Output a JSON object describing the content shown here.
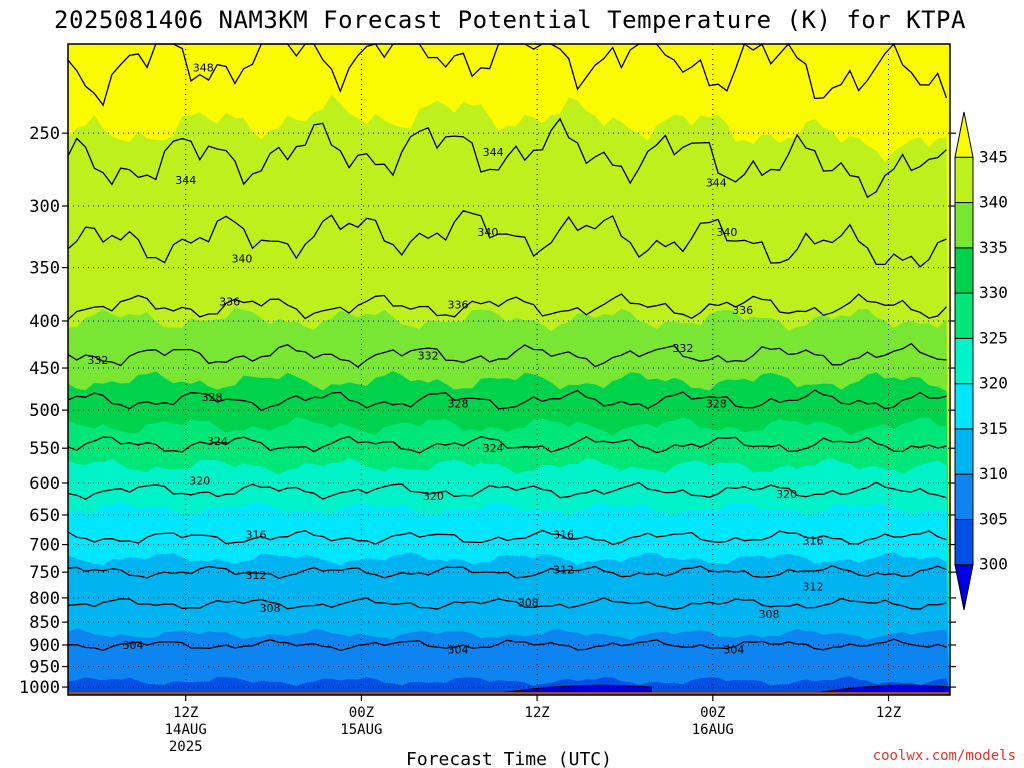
{
  "chart_data": {
    "type": "contour",
    "title": "2025081406 NAM3KM Forecast Potential Temperature (K) for KTPA",
    "xlabel": "Forecast Time (UTC)",
    "ylabel": "",
    "y_scale": "log-pressure",
    "y_reverse": true,
    "ylim": [
      1020,
      200
    ],
    "xlim": [
      -6.7,
      43.5
    ],
    "x_units": "hours from 2025081412",
    "y_ticks": [
      250,
      300,
      350,
      400,
      450,
      500,
      550,
      600,
      650,
      700,
      750,
      800,
      850,
      900,
      950,
      1000
    ],
    "y_tick_labels": [
      "250",
      "300",
      "350",
      "400",
      "450",
      "500",
      "550",
      "600",
      "650",
      "700",
      "750",
      "800",
      "850",
      "900",
      "950",
      "1000"
    ],
    "x_ticks": [
      {
        "x": 0,
        "lines": [
          "12Z",
          "14AUG",
          "2025"
        ]
      },
      {
        "x": 10,
        "lines": [
          "00Z",
          "15AUG"
        ]
      },
      {
        "x": 20,
        "lines": [
          "12Z"
        ]
      },
      {
        "x": 30,
        "lines": [
          "00Z",
          "16AUG"
        ]
      },
      {
        "x": 40,
        "lines": [
          "12Z"
        ]
      }
    ],
    "grid": true,
    "colorbar": {
      "levels": [
        300,
        305,
        310,
        315,
        320,
        325,
        330,
        335,
        340,
        345
      ],
      "labels": [
        "300",
        "305",
        "310",
        "315",
        "320",
        "325",
        "330",
        "335",
        "340",
        "345"
      ],
      "colors": [
        "#0000e6",
        "#0050e6",
        "#0d84f0",
        "#00b4f2",
        "#00e6ff",
        "#00f2c8",
        "#00e678",
        "#00d24b",
        "#78e632",
        "#bef01e",
        "#fafa00"
      ]
    },
    "contour_levels": [
      304,
      308,
      312,
      316,
      320,
      324,
      328,
      332,
      336,
      340,
      344,
      348
    ],
    "contour_labels": [
      {
        "value": 348,
        "x": 1.0,
        "p": 212
      },
      {
        "value": 344,
        "x": 0.0,
        "p": 281
      },
      {
        "value": 344,
        "x": 17.5,
        "p": 262
      },
      {
        "value": 344,
        "x": 30.2,
        "p": 283
      },
      {
        "value": 340,
        "x": 3.2,
        "p": 342
      },
      {
        "value": 340,
        "x": 17.2,
        "p": 320
      },
      {
        "value": 340,
        "x": 30.8,
        "p": 320
      },
      {
        "value": 336,
        "x": 2.5,
        "p": 381
      },
      {
        "value": 336,
        "x": 15.5,
        "p": 384
      },
      {
        "value": 336,
        "x": 31.7,
        "p": 389
      },
      {
        "value": 332,
        "x": -5.0,
        "p": 441
      },
      {
        "value": 332,
        "x": 13.8,
        "p": 436
      },
      {
        "value": 332,
        "x": 28.3,
        "p": 428
      },
      {
        "value": 328,
        "x": 1.5,
        "p": 484
      },
      {
        "value": 328,
        "x": 15.5,
        "p": 492
      },
      {
        "value": 328,
        "x": 30.2,
        "p": 492
      },
      {
        "value": 324,
        "x": 1.8,
        "p": 540
      },
      {
        "value": 324,
        "x": 17.5,
        "p": 550
      },
      {
        "value": 320,
        "x": 0.8,
        "p": 596
      },
      {
        "value": 320,
        "x": 14.1,
        "p": 620
      },
      {
        "value": 320,
        "x": 34.2,
        "p": 617
      },
      {
        "value": 316,
        "x": 4.0,
        "p": 683
      },
      {
        "value": 316,
        "x": 21.5,
        "p": 683
      },
      {
        "value": 316,
        "x": 35.7,
        "p": 693
      },
      {
        "value": 312,
        "x": 4.0,
        "p": 755
      },
      {
        "value": 312,
        "x": 21.5,
        "p": 745
      },
      {
        "value": 312,
        "x": 35.7,
        "p": 777
      },
      {
        "value": 308,
        "x": 4.8,
        "p": 820
      },
      {
        "value": 308,
        "x": 19.5,
        "p": 809
      },
      {
        "value": 308,
        "x": 33.2,
        "p": 833
      },
      {
        "value": 304,
        "x": -3.0,
        "p": 900
      },
      {
        "value": 304,
        "x": 15.5,
        "p": 910
      },
      {
        "value": 304,
        "x": 31.2,
        "p": 910
      }
    ]
  },
  "credit": "coolwx.com/models",
  "colors": {
    "ground": "#a0522d",
    "frame": "#000000",
    "grid": "#000000"
  }
}
